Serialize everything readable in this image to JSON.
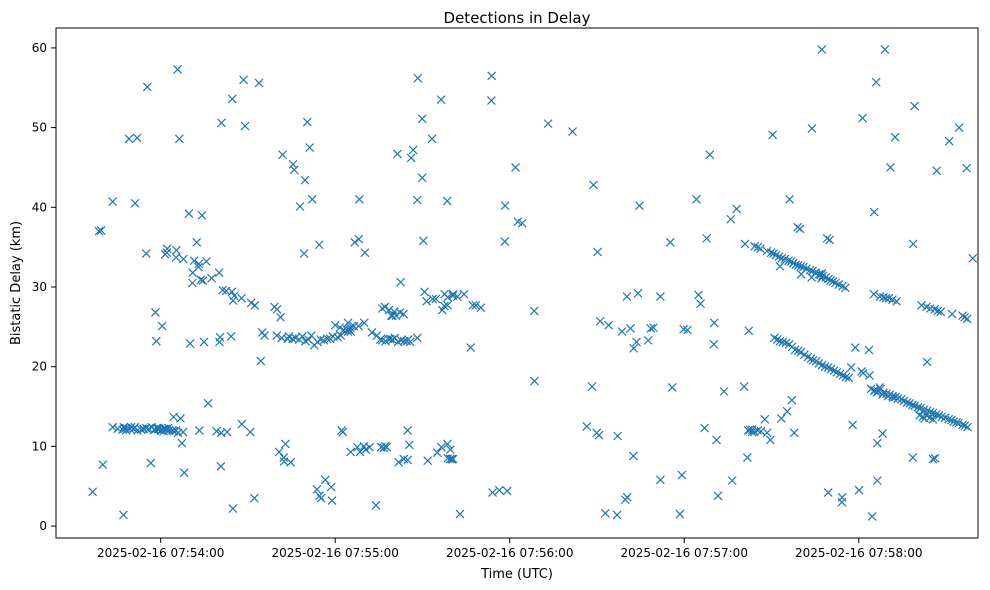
{
  "chart_data": {
    "type": "scatter",
    "title": "Detections in Delay",
    "xlabel": "Time (UTC)",
    "ylabel": "Bistatic Delay (km)",
    "marker": "x",
    "color": "#1f77b4",
    "x_unit": "seconds since 2025-02-16 07:53:00",
    "xlim": [
      24,
      341
    ],
    "ylim": [
      -1.5,
      62.5
    ],
    "grid": false,
    "legend": "none",
    "xticks": [
      {
        "value": 60,
        "label": "2025-02-16 07:54:00"
      },
      {
        "value": 120,
        "label": "2025-02-16 07:55:00"
      },
      {
        "value": 180,
        "label": "2025-02-16 07:56:00"
      },
      {
        "value": 240,
        "label": "2025-02-16 07:57:00"
      },
      {
        "value": 300,
        "label": "2025-02-16 07:58:00"
      }
    ],
    "yticks": [
      {
        "value": 0,
        "label": "0"
      },
      {
        "value": 10,
        "label": "10"
      },
      {
        "value": 20,
        "label": "20"
      },
      {
        "value": 30,
        "label": "30"
      },
      {
        "value": 40,
        "label": "40"
      },
      {
        "value": 50,
        "label": "50"
      },
      {
        "value": 60,
        "label": "60"
      }
    ],
    "x": [
      38.8,
      39.5,
      49.4,
      49.8,
      52,
      50.7,
      51.1,
      53.3,
      54.1,
      55,
      55.9,
      56.9,
      57.7,
      58.6,
      59.4,
      60.3,
      61.1,
      61.8,
      62.6,
      54,
      58,
      60,
      59.1,
      61,
      66,
      43.5,
      45.2,
      47.3,
      48.1,
      46.9,
      48.1,
      58.9,
      59.6,
      61.7,
      62.9,
      64.1,
      65.3,
      64.6,
      67.7,
      73.3,
      80.8,
      82.8,
      87.9,
      90.8,
      101.6,
      99.9,
      104.1,
      103.6,
      105.3,
      106.3,
      107.6,
      108.7,
      109.8,
      110.8,
      111.8,
      112.8,
      113.9,
      115,
      116.1,
      117.3,
      118.3,
      119.2,
      120.8,
      121.9,
      124.4,
      128,
      132.6,
      134.3,
      135.5,
      136.1,
      137.3,
      138.2,
      138.9,
      139.7,
      140.5,
      141.6,
      142.7,
      143.7,
      144.6,
      145.1,
      145.8,
      94.9,
      95.7,
      74.9,
      80.2,
      84.2,
      70.1,
      80.4,
      61.5,
      62.1,
      65.3,
      67.8,
      71.5,
      75.7,
      73.1,
      91.1,
      92.4,
      84.9,
      99.1,
      100,
      122.9,
      124.4,
      121.6,
      120,
      125.3,
      137.1,
      136.2,
      138.5,
      140.3,
      143.5,
      142.3,
      157.5,
      156.8,
      150.7,
      154.6,
      153.5,
      151.4,
      164.3,
      160.4,
      157.6,
      158.7,
      162,
      140.9,
      130,
      126.4,
      125.2,
      124,
      139.7,
      139.3,
      170.1,
      167.3,
      168.3,
      74.5,
      81.3,
      55,
      71,
      77.5,
      82.5,
      85.3,
      87.8,
      73,
      101.2,
      58.5,
      70.9,
      159.6,
      136.7,
      125.3,
      137.7,
      137.2,
      102.3,
      116.6,
      130.5,
      56.6,
      80.7,
      68.1,
      131.8,
      100.7,
      115.1,
      102.9,
      135.8,
      129.9,
      145.5,
      160.2,
      151.8,
      128.5,
      127.6,
      155.1,
      159.5,
      144.9,
      143.6,
      156.5,
      160.5,
      158.7,
      160.1,
      104.7,
      47.2,
      36.6,
      40.1,
      84.8,
      92.2,
      118.9,
      113.7,
      114.6,
      118.6,
      134,
      122.2,
      122.6,
      141.8,
      144.9,
      162.9,
      182.8,
      158.6,
      176.4,
      179.1,
      174.1,
      208.8,
      211.1,
      209.9,
      218.6,
      212.9,
      217.1,
      219.7,
      220.4,
      224.1,
      229.4,
      222.6,
      227.6,
      239.8,
      241.1,
      201.6,
      208.3,
      188.5,
      182,
      239.2,
      216.9,
      228.5,
      235.9,
      247,
      251.1,
      261.7,
      262.2,
      273.4,
      275.4,
      279,
      279.8,
      276.2,
      270.4,
      258,
      256,
      248.8,
      244.2,
      235.2,
      244.9,
      245.6,
      250.3,
      262.6,
      263.4,
      262,
      263.3,
      264.1,
      265.3,
      266.4,
      267.7,
      268.5,
      269.6,
      271,
      272,
      272.9,
      273.9,
      275,
      276.1,
      277.1,
      278.1,
      279.2,
      280.1,
      281.3,
      282.5,
      283.6,
      284.3,
      285.4,
      286.3,
      287.4,
      288.4,
      289.5,
      290.5,
      291.5,
      292.5,
      293.6,
      294.6,
      295.6,
      296.6,
      260.9,
      264.2,
      265.3,
      266.2,
      268.5,
      269.9,
      270.7,
      271.5,
      272.6,
      273.5,
      274.6,
      275.9,
      276.8,
      277.5,
      278.4,
      279.2,
      280.1,
      281,
      282,
      283.2,
      284.1,
      285.2,
      286.4,
      287.6,
      288.7,
      289.6,
      290.3,
      291.1,
      292,
      293.1,
      294.4,
      295.4,
      304.2,
      305.5,
      306.7,
      308.5,
      309.5,
      310.7,
      311.6,
      312.7,
      313.4,
      314.6,
      315.5,
      316.6,
      317.5,
      318.5,
      319.2,
      320.4,
      321.3,
      322.5,
      323.6,
      324.5,
      325.5,
      326.6,
      327.6,
      328.5,
      329.7,
      330.9,
      331.9,
      332.6,
      333.6,
      334.3,
      335.7,
      336.5,
      337.4,
      305.2,
      307.3,
      308.5,
      309.4,
      310.4,
      311.6,
      313,
      321.6,
      323.3,
      324.6,
      326.1,
      327.2,
      328.2,
      332.1,
      335.7,
      336.4,
      337.3,
      325.5,
      326.2,
      280.2,
      287.3,
      283.8,
      287.2,
      286.9,
      289.1,
      290,
      298.8,
      303.5,
      297.4,
      301,
      301.5,
      303.7,
      307.5,
      307.2,
      305.3,
      306.2,
      308.2,
      310,
      311.8,
      323.3,
      324.4,
      325.5,
      320.9,
      322,
      322.6,
      337.1,
      304.6,
      306.4,
      318.6,
      323.5,
      272.9,
      277.5
    ],
    "y": [
      37,
      37.1,
      12.2,
      12.4,
      12,
      12.2,
      12.4,
      12.1,
      12.2,
      12.3,
      12.2,
      12.4,
      12.1,
      12.3,
      12.2,
      12,
      12.2,
      12.1,
      12.3,
      12.2,
      12.1,
      12,
      12.2,
      11.9,
      11.7,
      12.4,
      12.2,
      12.4,
      12.3,
      12.1,
      12,
      12.3,
      12.2,
      12.2,
      12,
      12,
      12,
      11.9,
      11.8,
      12,
      11.7,
      11.8,
      12.8,
      11.8,
      23.6,
      23.9,
      23.8,
      23.5,
      23.5,
      23.6,
      23.4,
      23.8,
      23.2,
      23.4,
      23.9,
      22.7,
      23.1,
      23.4,
      23.3,
      23.5,
      23.5,
      23.8,
      23.7,
      23.9,
      25.5,
      25.1,
      24.3,
      23.9,
      23.4,
      23.3,
      23.2,
      23.5,
      23.5,
      23.4,
      23.6,
      23.1,
      23.3,
      23.2,
      23.2,
      23.4,
      23.1,
      24.3,
      23.9,
      23.1,
      23.1,
      23.8,
      22.9,
      23.7,
      34.1,
      34.3,
      33.7,
      33.5,
      33.3,
      33.2,
      32.9,
      28,
      27.7,
      28.3,
      27.5,
      27.2,
      24.6,
      24.4,
      24.9,
      25.2,
      24.4,
      27.5,
      27.3,
      27.1,
      26.9,
      26.6,
      26.8,
      27.6,
      27.1,
      29.4,
      28.5,
      28.5,
      28.2,
      29.1,
      28.9,
      29.1,
      28.7,
      28.8,
      26.4,
      25.5,
      25.1,
      24.9,
      24.6,
      26.4,
      26.4,
      27.4,
      27.7,
      27.7,
      30.8,
      29.6,
      34.2,
      31.8,
      31.1,
      29.5,
      28.9,
      28.6,
      32.5,
      26.2,
      23.2,
      30.5,
      9.6,
      9.8,
      9.3,
      9.9,
      10,
      8.6,
      5.8,
      9.6,
      7.9,
      7.5,
      6.7,
      9.9,
      9.3,
      3.5,
      10.3,
      9.9,
      10,
      10.2,
      8.4,
      8.2,
      9.3,
      9.9,
      9.2,
      8.4,
      8.3,
      8.4,
      9.9,
      8.4,
      8.5,
      8.4,
      8,
      1.4,
      4.3,
      7.7,
      2.2,
      3.5,
      3.2,
      4.6,
      3.8,
      4.9,
      2.6,
      12,
      11.8,
      8,
      12,
      1.5,
      38.2,
      10.3,
      4.5,
      4.4,
      4.2,
      42.8,
      25.7,
      11.7,
      24.4,
      1.6,
      11.3,
      3.3,
      3.6,
      29.2,
      24.9,
      22.3,
      23.3,
      24.7,
      24.6,
      49.5,
      17.5,
      18.2,
      45,
      6.4,
      1.4,
      24.8,
      17.4,
      12.3,
      10.8,
      8.6,
      24.5,
      13.5,
      14.4,
      37.5,
      37.3,
      41,
      49.1,
      39.8,
      38.5,
      46.6,
      41,
      35.6,
      29,
      27.9,
      25.5,
      12.1,
      12.1,
      12,
      11.8,
      11.8,
      12,
      11.9,
      13.4,
      11.7,
      10.8,
      23.6,
      23.4,
      23.2,
      23.1,
      23,
      22.8,
      22.5,
      22.1,
      22,
      21.8,
      21.5,
      21.2,
      21,
      20.8,
      20.7,
      20.4,
      20.2,
      20,
      19.9,
      19.7,
      19.5,
      19.3,
      19.1,
      18.9,
      18.7,
      18.6,
      35.4,
      35.1,
      35,
      34.8,
      34.5,
      34.3,
      34.2,
      34,
      33.8,
      33.6,
      33.5,
      33.3,
      33.2,
      33,
      32.8,
      32.7,
      32.6,
      32.5,
      32.3,
      32.1,
      32,
      31.8,
      31.6,
      31.4,
      31.2,
      31,
      30.8,
      30.7,
      30.5,
      30.3,
      30.1,
      29.9,
      17.2,
      17,
      16.9,
      16.7,
      16.6,
      16.5,
      16.3,
      16.2,
      16,
      15.9,
      15.7,
      15.5,
      15.4,
      15.2,
      15.1,
      14.9,
      14.8,
      14.6,
      14.5,
      14.3,
      14.2,
      14,
      13.9,
      13.7,
      13.6,
      13.4,
      13.3,
      13.1,
      13,
      12.9,
      12.7,
      12.6,
      12.4,
      29.1,
      28.8,
      28.7,
      28.6,
      28.6,
      28.4,
      28.2,
      27.7,
      27.5,
      27.3,
      27.2,
      27,
      26.9,
      26.6,
      26.4,
      26.2,
      26,
      8.4,
      8.5,
      31.6,
      31.7,
      31.2,
      31.1,
      31.5,
      36.1,
      35.9,
      22.4,
      22.1,
      19.9,
      19.4,
      19.2,
      18.9,
      17.2,
      17.4,
      17,
      16.8,
      16.5,
      16.3,
      16.1,
      13.9,
      13.6,
      13.4,
      13.9,
      13.7,
      13.5,
      44.9,
      1.2,
      5.7,
      8.6,
      20.6,
      32.6,
      33
    ],
    "outliers": {
      "x": [
        84.6,
        49.1,
        66.4,
        72.4,
        80.1,
        65.8,
        80.9,
        89,
        62.2,
        65.4,
        51.2,
        73.8,
        58.2,
        60.5,
        84.5,
        69.7,
        74.2,
        88.5,
        93.8,
        101.9,
        112.1,
        109.6,
        110.4,
        105.9,
        130.2,
        146.1,
        148.4,
        149.9,
        141.4,
        128.3,
        128.1,
        146.8,
        153.3,
        158.5,
        173.8,
        173.7,
        148.2,
        149.9,
        156.4,
        158.6,
        160.5,
        126.7,
        109.3,
        114.5,
        105.5,
        111.2,
        107.9,
        124.8,
        148.2,
        142.5,
        166.6,
        150.3,
        193.2,
        210.7,
        221.5,
        223.6,
        224.6,
        231.8,
        247.7,
        250.2,
        253.7,
        260.6,
        283.9,
        287.3,
        301.3,
        305.3,
        306,
        310.9,
        309,
        312.5,
        318.7,
        319.2,
        326.8,
        334.5,
        339.2,
        331.1,
        306.4,
        297.9,
        294.3,
        238.5,
        231.8,
        256.5,
        277.8,
        300.1,
        308.2,
        277,
        251.6,
        289.5,
        294.2,
        206.5,
        222.5,
        214,
        220.3,
        210.2,
        184.3,
        188.4,
        178.3,
        178.4,
        64.4,
        55.4,
        43.5,
        51.9,
        66.8,
        67.3,
        76.3,
        79.2,
        94.4,
        102.4
      ],
      "y": [
        53.6,
        48.6,
        48.6,
        35.6,
        31.8,
        57.3,
        50.6,
        50.2,
        34.8,
        34.6,
        40.5,
        30.9,
        26.8,
        25.1,
        29.4,
        39.2,
        39,
        56,
        55.6,
        46.6,
        41,
        43.4,
        50.7,
        44.7,
        34.3,
        46.2,
        56.2,
        51.1,
        46.7,
        41,
        36,
        47.2,
        48.6,
        40.8,
        56.5,
        53.4,
        40.9,
        43.7,
        53.5,
        27.7,
        29.1,
        35.6,
        34.2,
        35.3,
        45.4,
        47.5,
        40.1,
        24.7,
        23.6,
        30.6,
        22.4,
        35.8,
        50.5,
        11.4,
        24.8,
        23.1,
        40.2,
        28.8,
        36.1,
        22.8,
        16.9,
        17.5,
        49.9,
        59.8,
        51.2,
        39.4,
        55.7,
        45,
        59.8,
        48.8,
        35.4,
        52.7,
        44.6,
        50,
        33.6,
        48.3,
        10.4,
        12.7,
        3.6,
        1.5,
        5.8,
        5.7,
        11.7,
        4.5,
        11.6,
        15.8,
        3.8,
        4.2,
        3,
        12.5,
        8.8,
        25.2,
        28.8,
        34.4,
        38,
        27,
        35.7,
        40.2,
        13.7,
        55.1,
        40.7,
        48.7,
        13.5,
        10.4,
        15.4,
        11.9,
        20.7,
        8.1
      ]
    }
  }
}
